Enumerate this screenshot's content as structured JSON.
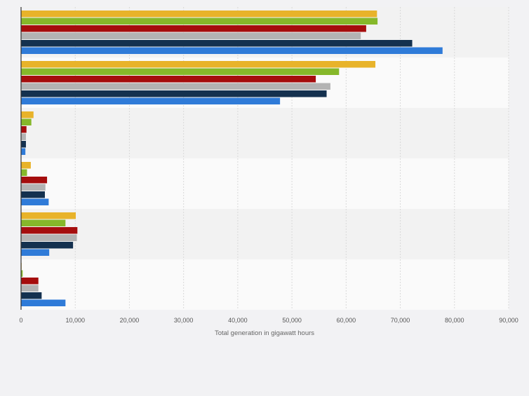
{
  "chart_data": {
    "type": "bar",
    "orientation": "horizontal",
    "title": "",
    "xlabel": "Total generation in gigawatt hours",
    "ylabel": "",
    "xlim": [
      0,
      90000
    ],
    "x_ticks": [
      "0",
      "10,000",
      "20,000",
      "30,000",
      "40,000",
      "50,000",
      "60,000",
      "70,000",
      "80,000",
      "90,000"
    ],
    "grid": true,
    "legend": "none",
    "colors": [
      "#e8b32a",
      "#86b82a",
      "#a50d0d",
      "#b3b3b3",
      "#14314f",
      "#2f7bd8"
    ],
    "groups": [
      {
        "values": [
          65700,
          65800,
          63700,
          62700,
          72200,
          77800
        ]
      },
      {
        "values": [
          65400,
          58700,
          54400,
          57100,
          56400,
          47800
        ]
      },
      {
        "values": [
          2300,
          1900,
          1000,
          900,
          900,
          800
        ]
      },
      {
        "values": [
          1800,
          1100,
          4800,
          4500,
          4400,
          5100
        ]
      },
      {
        "values": [
          10100,
          8200,
          10400,
          10300,
          9600,
          5200
        ]
      },
      {
        "values": [
          100,
          300,
          3200,
          3200,
          3800,
          8200
        ]
      }
    ]
  }
}
